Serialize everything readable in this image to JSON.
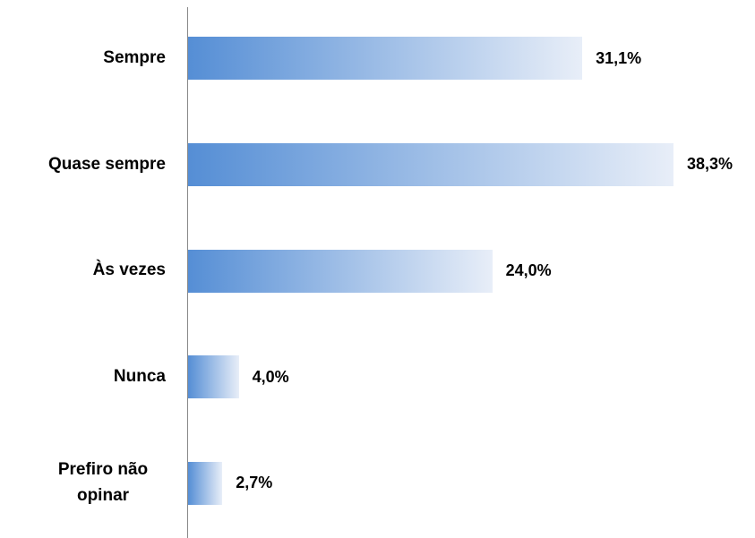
{
  "chart_data": {
    "type": "hbar",
    "categories": [
      "Sempre",
      "Quase sempre",
      "Às vezes",
      "Nunca",
      "Prefiro não opinar"
    ],
    "values": [
      31.1,
      38.3,
      24.0,
      4.0,
      2.7
    ],
    "value_labels": [
      "31,1%",
      "38,3%",
      "24,0%",
      "4,0%",
      "2,7%"
    ],
    "color": "#558ed5"
  }
}
